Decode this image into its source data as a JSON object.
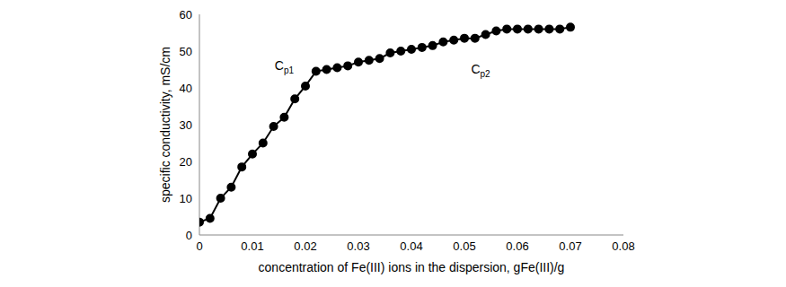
{
  "chart_data": {
    "type": "line",
    "x_label": "concentration of Fe(III) ions in the dispersion, gFe(III)/g",
    "y_label": "specific conductivity, mS/cm",
    "x": [
      0,
      0.002,
      0.004,
      0.006,
      0.008,
      0.01,
      0.012,
      0.014,
      0.016,
      0.018,
      0.02,
      0.022,
      0.024,
      0.026,
      0.028,
      0.03,
      0.032,
      0.034,
      0.036,
      0.038,
      0.04,
      0.042,
      0.044,
      0.046,
      0.048,
      0.05,
      0.052,
      0.054,
      0.056,
      0.058,
      0.06,
      0.062,
      0.064,
      0.066,
      0.068,
      0.07
    ],
    "values": [
      3.5,
      4.5,
      10,
      13,
      18.5,
      22,
      25,
      29.5,
      32,
      37,
      40.5,
      44.5,
      45,
      45.5,
      46,
      47,
      47.5,
      48,
      49.5,
      50,
      50.5,
      51,
      51.5,
      52.5,
      53,
      53.5,
      53.5,
      54.5,
      55.5,
      56,
      56,
      56,
      56,
      56,
      56,
      56.5
    ],
    "color": "#000000",
    "marker": "circle",
    "line_style": "solid",
    "xlim": [
      0,
      0.08
    ],
    "xticks": [
      0,
      0.01,
      0.02,
      0.03,
      0.04,
      0.05,
      0.06,
      0.07,
      0.08
    ],
    "ylim": [
      0,
      60
    ],
    "yticks": [
      0,
      10,
      20,
      30,
      40,
      50,
      60
    ],
    "grid": false,
    "annotations": [
      {
        "text": "Cp1",
        "x": 0.022,
        "y": 44.5
      },
      {
        "text": "Cp2",
        "x": 0.056,
        "y": 55.5
      }
    ]
  }
}
